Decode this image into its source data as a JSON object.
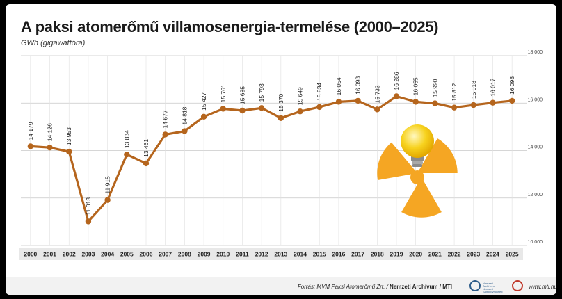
{
  "chart_data": {
    "type": "line",
    "title": "A paksi atomerőmű villamosenergia-termelése (2000–2025)",
    "subtitle": "GWh (gigawattóra)",
    "categories": [
      "2000",
      "2001",
      "2002",
      "2003",
      "2004",
      "2005",
      "2006",
      "2007",
      "2008",
      "2009",
      "2010",
      "2011",
      "2012",
      "2013",
      "2014",
      "2015",
      "2016",
      "2017",
      "2018",
      "2019",
      "2020",
      "2021",
      "2022",
      "2023",
      "2024",
      "2025"
    ],
    "values": [
      14179,
      14126,
      13953,
      11013,
      11915,
      13834,
      13461,
      14677,
      14818,
      15427,
      15761,
      15685,
      15793,
      15370,
      15649,
      15834,
      16054,
      16098,
      15733,
      16286,
      16055,
      15990,
      15812,
      15918,
      16017,
      16098
    ],
    "value_labels": [
      "14 179",
      "14 126",
      "13 953",
      "11 013",
      "11 915",
      "13 834",
      "13 461",
      "14 677",
      "14 818",
      "15 427",
      "15 761",
      "15 685",
      "15 793",
      "15 370",
      "15 649",
      "15 834",
      "16 054",
      "16 098",
      "15 733",
      "16 286",
      "16 055",
      "15 990",
      "15 812",
      "15 918",
      "16 017",
      "16 098"
    ],
    "ylim": [
      10000,
      18000
    ],
    "yticks": [
      10000,
      12000,
      14000,
      16000,
      18000
    ],
    "ytick_labels": [
      "10 000",
      "12 000",
      "14 000",
      "16 000",
      "18 000"
    ],
    "y_axis_side": "right",
    "grid": true,
    "line_color": "#b5651d",
    "accent_color": "#f5a623",
    "bulb_color": "#f7d21e"
  },
  "source": {
    "text": "Forrás: MVM Paksi Atomerőmű Zrt. / ",
    "bold": "Nemzeti Archívum / MTI",
    "logo_a_caption": "Nemzeti Archívum Nemzeti Sajtóügynökség",
    "website": "www.mti.hu"
  }
}
